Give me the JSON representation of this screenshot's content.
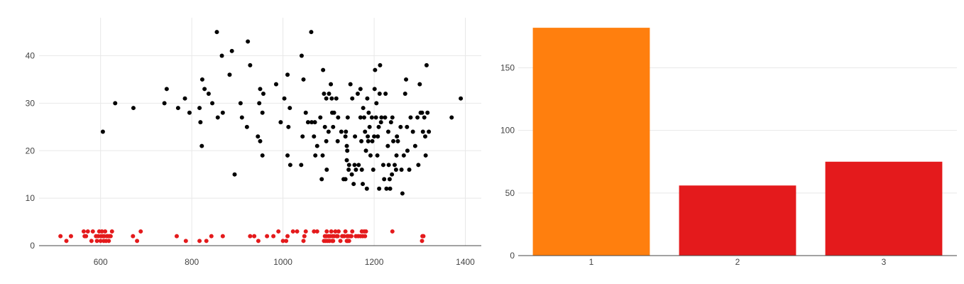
{
  "colors": {
    "black": "#000000",
    "red": "#e41a1c",
    "orange": "#ff7f0e"
  },
  "chart_data": [
    {
      "type": "scatter",
      "xlim": [
        465,
        1435
      ],
      "ylim": [
        0,
        48
      ],
      "xticks": [
        600,
        800,
        1000,
        1200,
        1400
      ],
      "yticks": [
        0,
        10,
        20,
        30,
        40
      ],
      "grid": true,
      "legend": "none",
      "series": [
        {
          "color": "#000000",
          "points": [
            [
              605,
              24
            ],
            [
              632,
              30
            ],
            [
              672,
              29
            ],
            [
              740,
              30
            ],
            [
              745,
              33
            ],
            [
              770,
              29
            ],
            [
              785,
              31
            ],
            [
              795,
              28
            ],
            [
              817,
              29
            ],
            [
              819,
              26
            ],
            [
              822,
              21
            ],
            [
              823,
              35
            ],
            [
              828,
              33
            ],
            [
              837,
              32
            ],
            [
              845,
              30
            ],
            [
              855,
              45
            ],
            [
              857,
              27
            ],
            [
              866,
              40
            ],
            [
              868,
              28
            ],
            [
              883,
              36
            ],
            [
              888,
              41
            ],
            [
              894,
              15
            ],
            [
              907,
              30
            ],
            [
              910,
              27
            ],
            [
              921,
              25
            ],
            [
              923,
              43
            ],
            [
              928,
              38
            ],
            [
              945,
              23
            ],
            [
              948,
              30
            ],
            [
              950,
              33
            ],
            [
              950,
              22
            ],
            [
              955,
              19
            ],
            [
              955,
              28
            ],
            [
              957,
              32
            ],
            [
              985,
              34
            ],
            [
              995,
              26
            ],
            [
              1003,
              31
            ],
            [
              1010,
              19
            ],
            [
              1010,
              36
            ],
            [
              1012,
              25
            ],
            [
              1015,
              29
            ],
            [
              1016,
              17
            ],
            [
              1040,
              17
            ],
            [
              1041,
              40
            ],
            [
              1043,
              23
            ],
            [
              1045,
              35
            ],
            [
              1050,
              28
            ],
            [
              1055,
              26
            ],
            [
              1062,
              45
            ],
            [
              1063,
              26
            ],
            [
              1068,
              23
            ],
            [
              1070,
              26
            ],
            [
              1071,
              19
            ],
            [
              1075,
              21
            ],
            [
              1082,
              27
            ],
            [
              1085,
              14
            ],
            [
              1087,
              19
            ],
            [
              1088,
              37
            ],
            [
              1090,
              32
            ],
            [
              1092,
              25
            ],
            [
              1095,
              31
            ],
            [
              1095,
              22
            ],
            [
              1096,
              16
            ],
            [
              1100,
              24
            ],
            [
              1101,
              32
            ],
            [
              1105,
              34
            ],
            [
              1107,
              31
            ],
            [
              1108,
              28
            ],
            [
              1110,
              25
            ],
            [
              1112,
              28
            ],
            [
              1117,
              31
            ],
            [
              1120,
              22
            ],
            [
              1121,
              27
            ],
            [
              1128,
              24
            ],
            [
              1133,
              14
            ],
            [
              1137,
              23
            ],
            [
              1137,
              14
            ],
            [
              1138,
              24
            ],
            [
              1140,
              21
            ],
            [
              1140,
              18
            ],
            [
              1141,
              20
            ],
            [
              1142,
              27
            ],
            [
              1144,
              16
            ],
            [
              1145,
              17
            ],
            [
              1148,
              34
            ],
            [
              1151,
              15
            ],
            [
              1152,
              31
            ],
            [
              1155,
              13
            ],
            [
              1157,
              17
            ],
            [
              1158,
              23
            ],
            [
              1160,
              16
            ],
            [
              1164,
              32
            ],
            [
              1166,
              17
            ],
            [
              1170,
              33
            ],
            [
              1170,
              27
            ],
            [
              1172,
              22
            ],
            [
              1173,
              16
            ],
            [
              1175,
              13
            ],
            [
              1176,
              29
            ],
            [
              1178,
              27
            ],
            [
              1180,
              24
            ],
            [
              1182,
              20
            ],
            [
              1184,
              12
            ],
            [
              1185,
              31
            ],
            [
              1186,
              23
            ],
            [
              1187,
              22
            ],
            [
              1188,
              28
            ],
            [
              1190,
              25
            ],
            [
              1192,
              19
            ],
            [
              1195,
              27
            ],
            [
              1196,
              22
            ],
            [
              1198,
              16
            ],
            [
              1200,
              23
            ],
            [
              1201,
              33
            ],
            [
              1202,
              37
            ],
            [
              1204,
              27
            ],
            [
              1205,
              30
            ],
            [
              1207,
              19
            ],
            [
              1208,
              23
            ],
            [
              1210,
              25
            ],
            [
              1211,
              12
            ],
            [
              1212,
              32
            ],
            [
              1213,
              38
            ],
            [
              1215,
              26
            ],
            [
              1216,
              27
            ],
            [
              1220,
              17
            ],
            [
              1222,
              14
            ],
            [
              1224,
              27
            ],
            [
              1225,
              32
            ],
            [
              1227,
              12
            ],
            [
              1230,
              21
            ],
            [
              1231,
              24
            ],
            [
              1232,
              17
            ],
            [
              1234,
              14
            ],
            [
              1235,
              12
            ],
            [
              1237,
              26
            ],
            [
              1239,
              15
            ],
            [
              1240,
              27
            ],
            [
              1242,
              22
            ],
            [
              1245,
              17
            ],
            [
              1248,
              16
            ],
            [
              1249,
              19
            ],
            [
              1250,
              23
            ],
            [
              1252,
              22
            ],
            [
              1258,
              25
            ],
            [
              1260,
              16
            ],
            [
              1262,
              11
            ],
            [
              1265,
              19
            ],
            [
              1268,
              32
            ],
            [
              1270,
              35
            ],
            [
              1272,
              25
            ],
            [
              1273,
              20
            ],
            [
              1277,
              16
            ],
            [
              1280,
              27
            ],
            [
              1285,
              24
            ],
            [
              1290,
              21
            ],
            [
              1295,
              27
            ],
            [
              1297,
              17
            ],
            [
              1300,
              34
            ],
            [
              1302,
              28
            ],
            [
              1305,
              28
            ],
            [
              1307,
              24
            ],
            [
              1310,
              27
            ],
            [
              1312,
              23
            ],
            [
              1313,
              19
            ],
            [
              1315,
              38
            ],
            [
              1317,
              28
            ],
            [
              1320,
              24
            ],
            [
              1370,
              27
            ],
            [
              1390,
              31
            ]
          ]
        },
        {
          "color": "#e41a1c",
          "points": [
            [
              512,
              2
            ],
            [
              525,
              1
            ],
            [
              535,
              2
            ],
            [
              563,
              3
            ],
            [
              565,
              2
            ],
            [
              568,
              2
            ],
            [
              572,
              3
            ],
            [
              580,
              1
            ],
            [
              583,
              3
            ],
            [
              590,
              2
            ],
            [
              592,
              1
            ],
            [
              595,
              2
            ],
            [
              597,
              3
            ],
            [
              600,
              1
            ],
            [
              601,
              2
            ],
            [
              603,
              3
            ],
            [
              605,
              2
            ],
            [
              607,
              1
            ],
            [
              608,
              2
            ],
            [
              610,
              3
            ],
            [
              612,
              1
            ],
            [
              614,
              2
            ],
            [
              616,
              2
            ],
            [
              618,
              1
            ],
            [
              620,
              2
            ],
            [
              622,
              2
            ],
            [
              625,
              3
            ],
            [
              671,
              2
            ],
            [
              680,
              1
            ],
            [
              688,
              3
            ],
            [
              767,
              2
            ],
            [
              787,
              1
            ],
            [
              817,
              1
            ],
            [
              832,
              1
            ],
            [
              843,
              2
            ],
            [
              868,
              2
            ],
            [
              928,
              2
            ],
            [
              937,
              2
            ],
            [
              946,
              1
            ],
            [
              965,
              2
            ],
            [
              979,
              2
            ],
            [
              990,
              3
            ],
            [
              1000,
              1
            ],
            [
              1007,
              1
            ],
            [
              1010,
              2
            ],
            [
              1022,
              3
            ],
            [
              1031,
              3
            ],
            [
              1045,
              1
            ],
            [
              1047,
              2
            ],
            [
              1050,
              3
            ],
            [
              1068,
              3
            ],
            [
              1075,
              3
            ],
            [
              1090,
              1
            ],
            [
              1092,
              2
            ],
            [
              1094,
              1
            ],
            [
              1095,
              2
            ],
            [
              1096,
              3
            ],
            [
              1098,
              1
            ],
            [
              1100,
              2
            ],
            [
              1102,
              1
            ],
            [
              1104,
              2
            ],
            [
              1106,
              3
            ],
            [
              1108,
              1
            ],
            [
              1109,
              2
            ],
            [
              1110,
              1
            ],
            [
              1112,
              2
            ],
            [
              1115,
              3
            ],
            [
              1118,
              2
            ],
            [
              1120,
              2
            ],
            [
              1122,
              3
            ],
            [
              1126,
              1
            ],
            [
              1130,
              2
            ],
            [
              1134,
              2
            ],
            [
              1137,
              3
            ],
            [
              1140,
              1
            ],
            [
              1141,
              2
            ],
            [
              1142,
              1
            ],
            [
              1143,
              2
            ],
            [
              1145,
              1
            ],
            [
              1148,
              2
            ],
            [
              1150,
              2
            ],
            [
              1152,
              3
            ],
            [
              1160,
              2
            ],
            [
              1165,
              2
            ],
            [
              1170,
              2
            ],
            [
              1173,
              3
            ],
            [
              1175,
              2
            ],
            [
              1178,
              3
            ],
            [
              1180,
              2
            ],
            [
              1182,
              3
            ],
            [
              1240,
              3
            ],
            [
              1305,
              1
            ],
            [
              1306,
              2
            ],
            [
              1308,
              2
            ]
          ]
        }
      ]
    },
    {
      "type": "bar",
      "categories": [
        "1",
        "2",
        "3"
      ],
      "values": [
        182,
        56,
        75
      ],
      "colors": [
        "#ff7f0e",
        "#e41a1c",
        "#e41a1c"
      ],
      "ylim": [
        0,
        190
      ],
      "yticks": [
        0,
        50,
        100,
        150
      ],
      "grid": true,
      "legend": "none"
    }
  ]
}
